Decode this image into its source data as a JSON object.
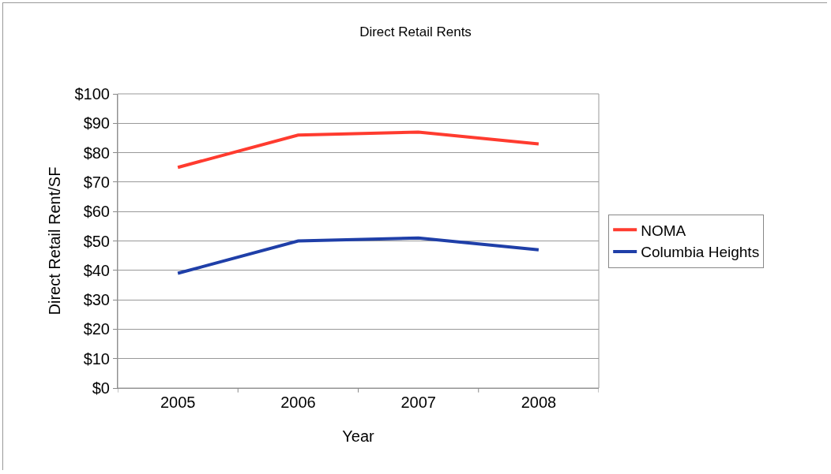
{
  "chart_data": {
    "type": "line",
    "title": "Direct Retail Rents",
    "xlabel": "Year",
    "ylabel": "Direct Retail Rent/SF",
    "categories": [
      "2005",
      "2006",
      "2007",
      "2008"
    ],
    "series": [
      {
        "name": "NOMA",
        "color": "#ff3b2f",
        "values": [
          75,
          86,
          87,
          83
        ]
      },
      {
        "name": "Columbia Heights",
        "color": "#1f3fa8",
        "values": [
          39,
          50,
          51,
          47
        ]
      }
    ],
    "ylim": [
      0,
      100
    ],
    "yticks": [
      {
        "value": 0,
        "label": "$0"
      },
      {
        "value": 10,
        "label": "$10"
      },
      {
        "value": 20,
        "label": "$20"
      },
      {
        "value": 30,
        "label": "$30"
      },
      {
        "value": 40,
        "label": "$40"
      },
      {
        "value": 50,
        "label": "$50"
      },
      {
        "value": 60,
        "label": "$60"
      },
      {
        "value": 70,
        "label": "$70"
      },
      {
        "value": 80,
        "label": "$80"
      },
      {
        "value": 90,
        "label": "$90"
      },
      {
        "value": 100,
        "label": "$100"
      }
    ],
    "grid": "y",
    "legend": "right",
    "marker": "none",
    "line_style": "solid"
  }
}
